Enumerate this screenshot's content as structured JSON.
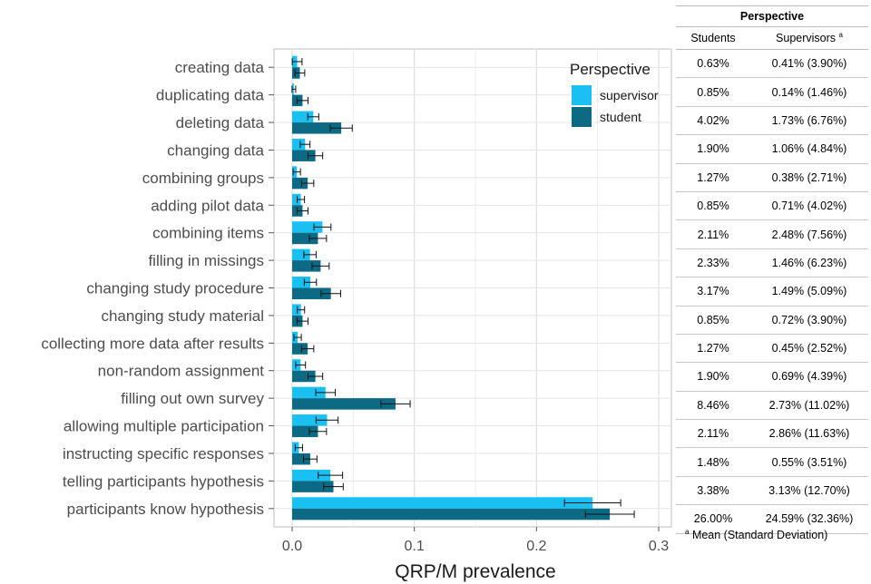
{
  "chart_data": {
    "type": "bar",
    "orientation": "horizontal",
    "xlabel": "QRP/M prevalence",
    "xlim": [
      0,
      0.3
    ],
    "xticks": [
      "0.0",
      "0.1",
      "0.2",
      "0.3"
    ],
    "grid": true,
    "legend": {
      "title": "Perspective",
      "position": "top-right"
    },
    "categories": [
      "creating data",
      "duplicating data",
      "deleting data",
      "changing data",
      "combining groups",
      "adding pilot data",
      "combining items",
      "filling in missings",
      "changing study procedure",
      "changing study material",
      "collecting more data after results",
      "non-random assignment",
      "filling out own survey",
      "allowing multiple participation",
      "instructing specific responses",
      "telling participants hypothesis",
      "participants know hypothesis"
    ],
    "series": [
      {
        "name": "supervisor",
        "color": "#1AC0F2",
        "values": [
          0.0041,
          0.0014,
          0.0173,
          0.0106,
          0.0038,
          0.0071,
          0.0248,
          0.0146,
          0.0149,
          0.0072,
          0.0045,
          0.0069,
          0.0273,
          0.0286,
          0.0055,
          0.0313,
          0.2459
        ],
        "error": [
          0.004,
          0.0015,
          0.0045,
          0.004,
          0.003,
          0.003,
          0.007,
          0.005,
          0.005,
          0.003,
          0.003,
          0.004,
          0.008,
          0.009,
          0.003,
          0.01,
          0.023
        ]
      },
      {
        "name": "student",
        "color": "#0C6A85",
        "values": [
          0.0063,
          0.0085,
          0.0402,
          0.019,
          0.0127,
          0.0085,
          0.0211,
          0.0233,
          0.0317,
          0.0085,
          0.0127,
          0.019,
          0.0846,
          0.0211,
          0.0148,
          0.0338,
          0.26
        ],
        "error": [
          0.004,
          0.0045,
          0.009,
          0.006,
          0.005,
          0.0045,
          0.007,
          0.007,
          0.008,
          0.0045,
          0.005,
          0.006,
          0.012,
          0.007,
          0.0055,
          0.008,
          0.02
        ]
      }
    ]
  },
  "table": {
    "title": "Perspective",
    "col_students": "Students",
    "col_supervisors": "Supervisors",
    "col_supervisors_mark": "a",
    "rows": [
      {
        "students": "0.63%",
        "supervisors": "0.41% (3.90%)"
      },
      {
        "students": "0.85%",
        "supervisors": "0.14% (1.46%)"
      },
      {
        "students": "4.02%",
        "supervisors": "1.73% (6.76%)"
      },
      {
        "students": "1.90%",
        "supervisors": "1.06% (4.84%)"
      },
      {
        "students": "1.27%",
        "supervisors": "0.38% (2.71%)"
      },
      {
        "students": "0.85%",
        "supervisors": "0.71% (4.02%)"
      },
      {
        "students": "2.11%",
        "supervisors": "2.48% (7.56%)"
      },
      {
        "students": "2.33%",
        "supervisors": "1.46% (6.23%)"
      },
      {
        "students": "3.17%",
        "supervisors": "1.49% (5.09%)"
      },
      {
        "students": "0.85%",
        "supervisors": "0.72% (3.90%)"
      },
      {
        "students": "1.27%",
        "supervisors": "0.45% (2.52%)"
      },
      {
        "students": "1.90%",
        "supervisors": "0.69% (4.39%)"
      },
      {
        "students": "8.46%",
        "supervisors": "2.73% (11.02%)"
      },
      {
        "students": "2.11%",
        "supervisors": "2.86% (11.63%)"
      },
      {
        "students": "1.48%",
        "supervisors": "0.55% (3.51%)"
      },
      {
        "students": "3.38%",
        "supervisors": "3.13% (12.70%)"
      },
      {
        "students": "26.00%",
        "supervisors": "24.59% (32.36%)"
      }
    ],
    "footnote_mark": "a",
    "footnote": "Mean (Standard Deviation)"
  }
}
